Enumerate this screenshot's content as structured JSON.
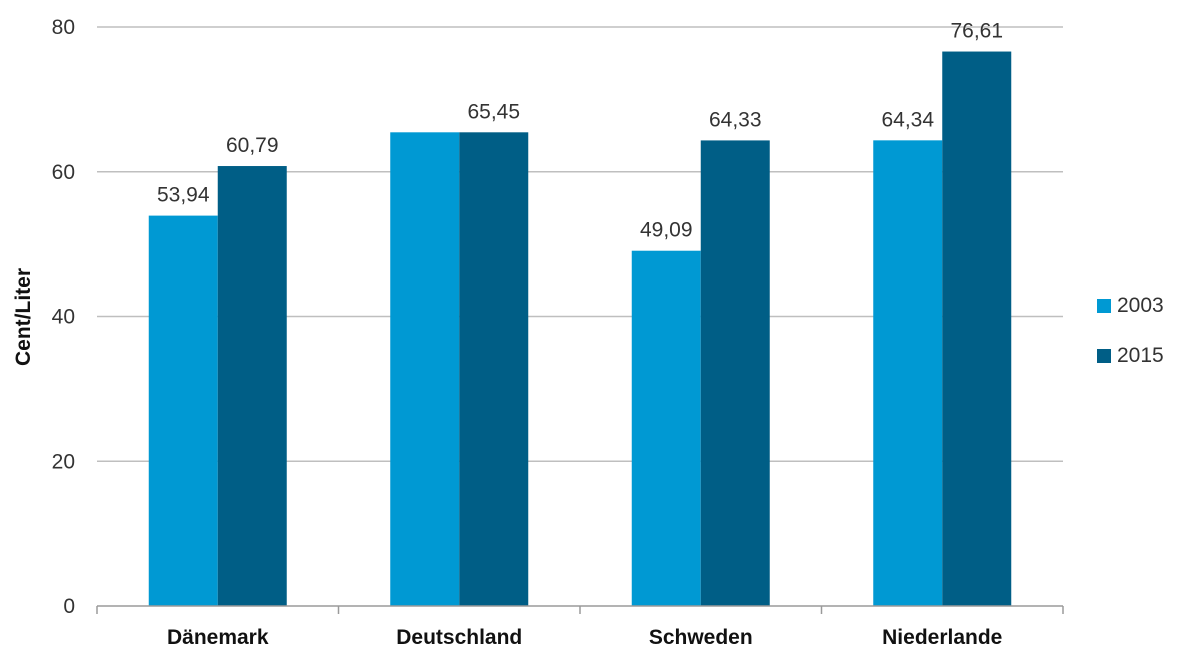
{
  "chart_data": {
    "type": "bar",
    "ylabel": "Cent/Liter",
    "ylim": [
      0,
      80
    ],
    "yticks": [
      0,
      20,
      40,
      60,
      80
    ],
    "grid": true,
    "legend_position": "right",
    "categories": [
      "Dänemark",
      "Deutschland",
      "Schweden",
      "Niederlande"
    ],
    "series": [
      {
        "name": "2003",
        "color": "#0099d3",
        "values": [
          53.94,
          65.45,
          49.09,
          64.34
        ],
        "labels": [
          "53,94",
          "",
          "49,09",
          "64,34"
        ]
      },
      {
        "name": "2015",
        "color": "#005e86",
        "values": [
          60.79,
          65.45,
          64.33,
          76.61
        ],
        "labels": [
          "60,79",
          "65,45",
          "64,33",
          "76,61"
        ]
      }
    ]
  }
}
